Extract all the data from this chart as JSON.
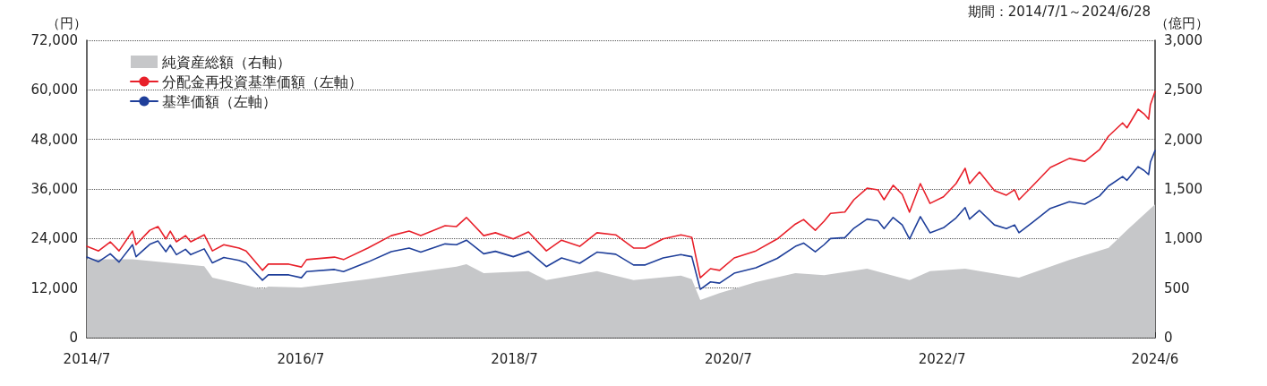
{
  "chart_data": {
    "type": "line",
    "subtitle": "期間：2014/7/1～2024/6/28",
    "ylabel": "（円）",
    "y2label": "（億円）",
    "xlim": [
      "2014-07-01",
      "2024-06-28"
    ],
    "xticks": [
      {
        "value": "2014-07-01",
        "label": "2014/7"
      },
      {
        "value": "2016-07-01",
        "label": "2016/7"
      },
      {
        "value": "2018-07-01",
        "label": "2018/7"
      },
      {
        "value": "2020-07-01",
        "label": "2020/7"
      },
      {
        "value": "2022-07-01",
        "label": "2022/7"
      },
      {
        "value": "2024-06-28",
        "label": "2024/6"
      }
    ],
    "ylim": [
      0,
      72000
    ],
    "yticks": [
      0,
      {
        "value": 12000,
        "label": "12,000"
      },
      {
        "value": 24000,
        "label": "24,000"
      },
      {
        "value": 36000,
        "label": "36,000"
      },
      {
        "value": 48000,
        "label": "48,000"
      },
      {
        "value": 60000,
        "label": "60,000"
      },
      {
        "value": 72000,
        "label": "72,000"
      }
    ],
    "y2lim": [
      0,
      3000
    ],
    "y2ticks": [
      0,
      500,
      {
        "value": 1000,
        "label": "1,000"
      },
      {
        "value": 1500,
        "label": "1,500"
      },
      {
        "value": 2000,
        "label": "2,000"
      },
      {
        "value": 2500,
        "label": "2,500"
      },
      {
        "value": 3000,
        "label": "3,000"
      }
    ],
    "grid": "y",
    "legend": "top left",
    "marker": "none",
    "line_style": "solid",
    "x": [
      "2014-07-01",
      "2014-08-10",
      "2014-09-19",
      "2014-10-19",
      "2014-12-04",
      "2014-12-16",
      "2015-02-01",
      "2015-03-01",
      "2015-03-28",
      "2015-04-12",
      "2015-05-03",
      "2015-06-03",
      "2015-06-21",
      "2015-08-06",
      "2015-09-03",
      "2015-10-12",
      "2015-12-03",
      "2015-12-27",
      "2016-01-21",
      "2016-02-21",
      "2016-03-12",
      "2016-05-21",
      "2016-07-03",
      "2016-07-21",
      "2016-10-24",
      "2016-11-24",
      "2017-02-15",
      "2017-05-06",
      "2017-07-06",
      "2017-08-15",
      "2017-11-06",
      "2017-12-15",
      "2018-01-18",
      "2018-03-18",
      "2018-04-27",
      "2018-06-27",
      "2018-08-18",
      "2018-10-18",
      "2018-12-09",
      "2019-02-09",
      "2019-04-09",
      "2019-06-12",
      "2019-08-12",
      "2019-09-21",
      "2019-11-21",
      "2020-01-21",
      "2020-02-27",
      "2020-03-27",
      "2020-05-01",
      "2020-06-01",
      "2020-07-21",
      "2020-10-03",
      "2020-12-15",
      "2021-02-15",
      "2021-03-15",
      "2021-04-24",
      "2021-05-24",
      "2021-06-15",
      "2021-08-03",
      "2021-09-03",
      "2021-10-18",
      "2021-11-24",
      "2021-12-15",
      "2022-01-15",
      "2022-02-15",
      "2022-03-12",
      "2022-04-18",
      "2022-05-21",
      "2022-07-06",
      "2022-08-18",
      "2022-09-18",
      "2022-10-03",
      "2022-11-06",
      "2022-12-27",
      "2023-02-06",
      "2023-03-06",
      "2023-03-21",
      "2023-05-06",
      "2023-07-06",
      "2023-09-09",
      "2023-11-01",
      "2023-12-21",
      "2024-01-21",
      "2024-03-09",
      "2024-03-24",
      "2024-05-01",
      "2024-05-21",
      "2024-06-06",
      "2024-06-12",
      "2024-06-28"
    ],
    "series": [
      {
        "name": "純資産総額（右軸）",
        "type": "area",
        "axis": "y2",
        "color": "#c6c7c9",
        "x": [
          "2014-07-01",
          "2014-12-04",
          "2015-08-06",
          "2015-09-03",
          "2016-02-21",
          "2016-03-12",
          "2016-07-03",
          "2017-02-15",
          "2017-07-06",
          "2017-12-15",
          "2018-01-18",
          "2018-03-18",
          "2018-08-18",
          "2018-10-18",
          "2019-04-09",
          "2019-08-12",
          "2020-01-21",
          "2020-02-27",
          "2020-03-27",
          "2020-06-01",
          "2020-10-03",
          "2021-02-15",
          "2021-05-24",
          "2021-10-18",
          "2022-03-12",
          "2022-05-21",
          "2022-09-18",
          "2023-02-06",
          "2023-03-21",
          "2023-09-09",
          "2024-01-21",
          "2024-03-24",
          "2024-06-28"
        ],
        "values": [
          790,
          790,
          720,
          605,
          490,
          515,
          505,
          590,
          650,
          715,
          740,
          650,
          670,
          580,
          670,
          580,
          625,
          590,
          380,
          450,
          560,
          650,
          630,
          695,
          580,
          670,
          695,
          625,
          605,
          785,
          905,
          1085,
          1345
        ]
      },
      {
        "name": "分配金再投資基準価額（左軸）",
        "color": "#e8202a",
        "values": [
          22100,
          21000,
          23200,
          21000,
          25800,
          22500,
          26000,
          26900,
          23900,
          25800,
          23200,
          24700,
          23200,
          24900,
          21000,
          22500,
          21700,
          21000,
          18900,
          16300,
          17800,
          17800,
          17100,
          18900,
          19500,
          18900,
          21700,
          24700,
          25800,
          24700,
          27100,
          26900,
          29100,
          24700,
          25400,
          23900,
          25600,
          21000,
          23600,
          22100,
          25400,
          24900,
          21700,
          21700,
          23900,
          24900,
          24300,
          14500,
          16700,
          16300,
          19300,
          21000,
          23900,
          27500,
          28600,
          26000,
          28200,
          30100,
          30400,
          33400,
          36200,
          35800,
          33400,
          36900,
          34700,
          30400,
          37300,
          32500,
          34100,
          37300,
          41000,
          37300,
          40100,
          35600,
          34500,
          35800,
          33400,
          36700,
          41200,
          43400,
          42700,
          45500,
          48800,
          52000,
          50800,
          55300,
          54200,
          52900,
          56400,
          59600
        ]
      },
      {
        "name": "基準価額（左軸）",
        "color": "#1f3f9a",
        "values": [
          19500,
          18400,
          20300,
          18300,
          22500,
          19600,
          22600,
          23400,
          20800,
          22400,
          20100,
          21400,
          20100,
          21500,
          18100,
          19400,
          18700,
          18100,
          16200,
          13900,
          15200,
          15200,
          14500,
          16000,
          16500,
          16000,
          18300,
          20800,
          21700,
          20700,
          22700,
          22500,
          23600,
          20300,
          20900,
          19600,
          20900,
          17200,
          19300,
          18000,
          20700,
          20200,
          17600,
          17600,
          19300,
          20100,
          19600,
          11700,
          13500,
          13200,
          15600,
          16900,
          19200,
          22100,
          22900,
          20800,
          22500,
          24000,
          24200,
          26500,
          28700,
          28300,
          26400,
          29100,
          27300,
          23900,
          29300,
          25400,
          26600,
          29000,
          31500,
          28700,
          30800,
          27300,
          26400,
          27300,
          25400,
          27900,
          31300,
          32900,
          32300,
          34300,
          36700,
          39000,
          38100,
          41400,
          40500,
          39500,
          42500,
          45300
        ]
      }
    ]
  }
}
